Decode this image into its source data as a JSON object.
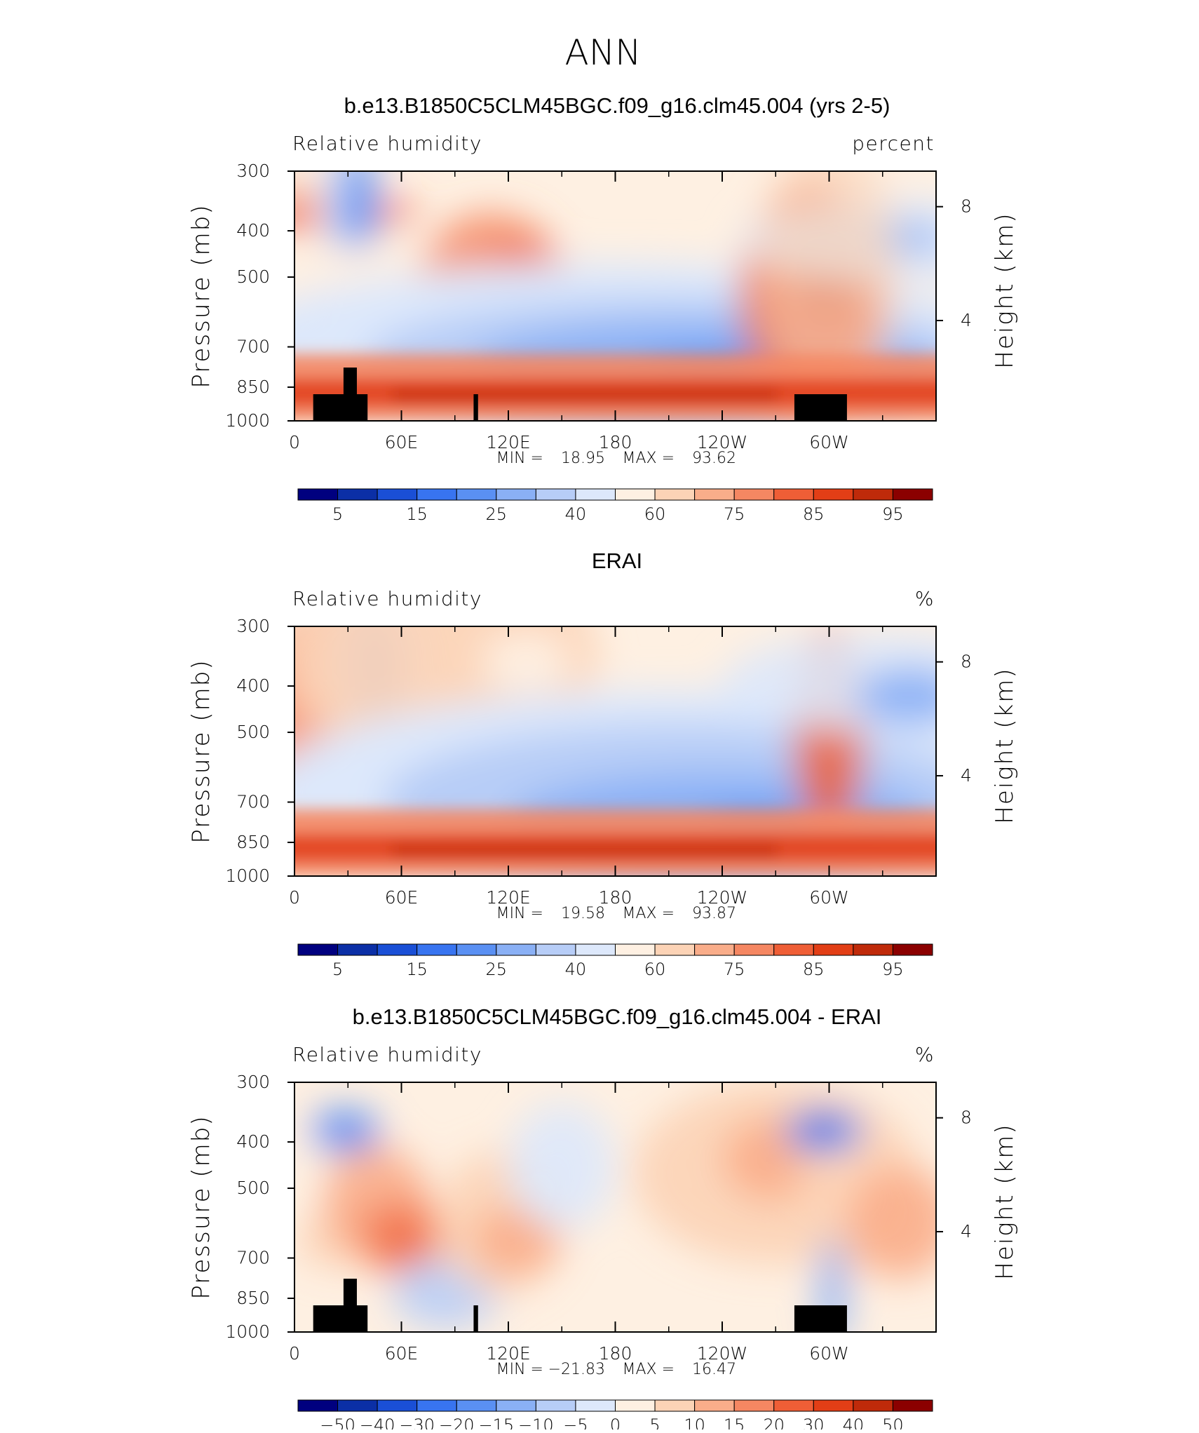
{
  "page": {
    "season": "ANN",
    "colors": {
      "colormap_rh": [
        "#00007f",
        "#0b2fa6",
        "#1a4fd6",
        "#3874f0",
        "#5a90f3",
        "#8ab0f5",
        "#b7cdf7",
        "#dde8fb",
        "#fef0e2",
        "#fcd3b6",
        "#f9ad8a",
        "#f58762",
        "#ef5e36",
        "#e23e16",
        "#bf2a0a",
        "#8b0000"
      ],
      "colormap_diff": [
        "#00007f",
        "#0b2fa6",
        "#1a4fd6",
        "#3874f0",
        "#5a90f3",
        "#8ab0f5",
        "#b7cdf7",
        "#dde8fb",
        "#fef0e2",
        "#fcd3b6",
        "#f9ad8a",
        "#f58762",
        "#ef5e36",
        "#e23e16",
        "#bf2a0a",
        "#8b0000"
      ],
      "topography": "#000000"
    }
  },
  "chart_data": [
    {
      "type": "heatmap",
      "title": "b.e13.B1850C5CLM45BGC.f09_g16.clm45.004 (yrs 2-5)",
      "left_label": "Relative humidity",
      "right_label": "percent",
      "ylabel": "Pressure (mb)",
      "ylabel_right": "Height (km)",
      "x_ticks": [
        "0",
        "60E",
        "120E",
        "180",
        "120W",
        "60W"
      ],
      "y_ticks": [
        "300",
        "400",
        "500",
        "700",
        "850",
        "1000"
      ],
      "y_right_ticks": [
        "8",
        "4"
      ],
      "xlim": [
        0,
        360
      ],
      "ylim": [
        1000,
        300
      ],
      "stats_min_label": "MIN =",
      "min": "18.95",
      "stats_max_label": "MAX =",
      "max": "93.62",
      "colorbar_labels": [
        "5",
        "15",
        "25",
        "40",
        "60",
        "75",
        "85",
        "95"
      ]
    },
    {
      "type": "heatmap",
      "title": "ERAI",
      "left_label": "Relative humidity",
      "right_label": "%",
      "ylabel": "Pressure (mb)",
      "ylabel_right": "Height (km)",
      "x_ticks": [
        "0",
        "60E",
        "120E",
        "180",
        "120W",
        "60W"
      ],
      "y_ticks": [
        "300",
        "400",
        "500",
        "700",
        "850",
        "1000"
      ],
      "y_right_ticks": [
        "8",
        "4"
      ],
      "xlim": [
        0,
        360
      ],
      "ylim": [
        1000,
        300
      ],
      "stats_min_label": "MIN =",
      "min": "19.58",
      "stats_max_label": "MAX =",
      "max": "93.87",
      "colorbar_labels": [
        "5",
        "15",
        "25",
        "40",
        "60",
        "75",
        "85",
        "95"
      ]
    },
    {
      "type": "heatmap",
      "title": "b.e13.B1850C5CLM45BGC.f09_g16.clm45.004 - ERAI",
      "left_label": "Relative humidity",
      "right_label": "%",
      "ylabel": "Pressure (mb)",
      "ylabel_right": "Height (km)",
      "x_ticks": [
        "0",
        "60E",
        "120E",
        "180",
        "120W",
        "60W"
      ],
      "y_ticks": [
        "300",
        "400",
        "500",
        "700",
        "850",
        "1000"
      ],
      "y_right_ticks": [
        "8",
        "4"
      ],
      "xlim": [
        0,
        360
      ],
      "ylim": [
        1000,
        300
      ],
      "stats_min_label": "MIN =",
      "min": "−21.83",
      "stats_max_label": "MAX =",
      "max": "16.47",
      "colorbar_labels": [
        "−50",
        "−40",
        "−30",
        "−20",
        "−15",
        "−10",
        "−5",
        "0",
        "5",
        "10",
        "15",
        "20",
        "30",
        "40",
        "50"
      ]
    }
  ]
}
